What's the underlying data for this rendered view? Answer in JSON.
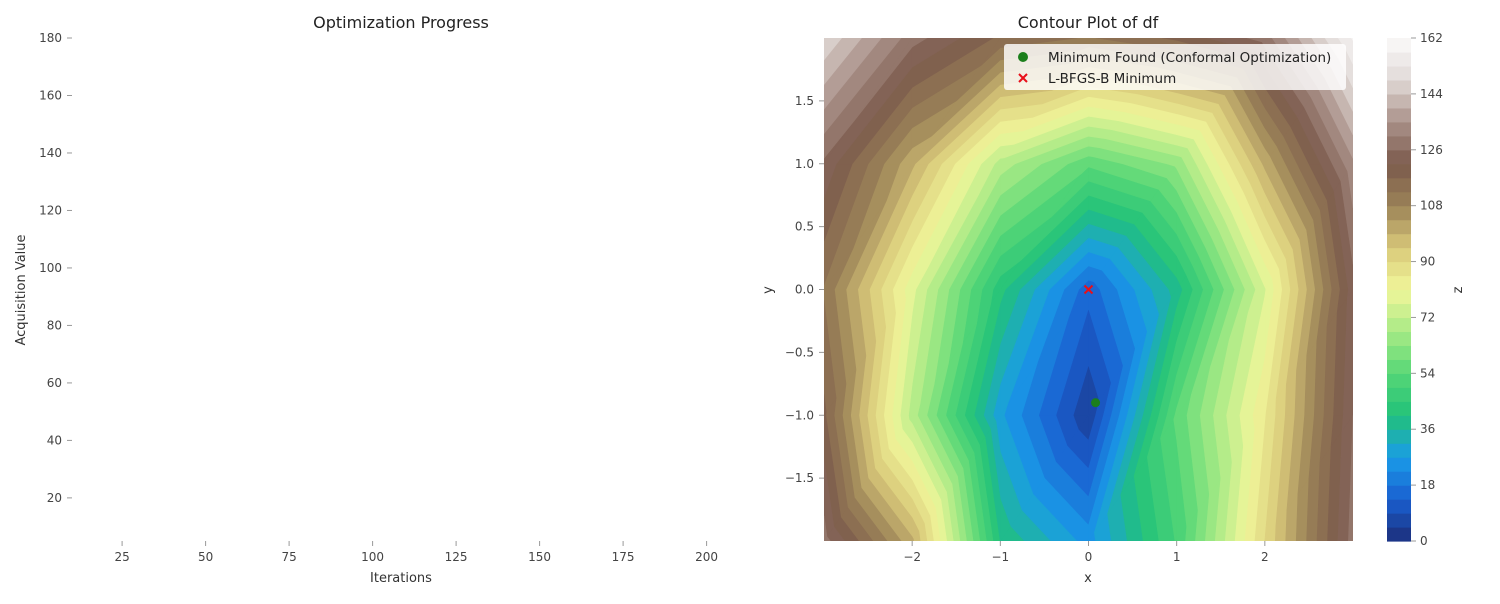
{
  "chart_data": [
    {
      "type": "line",
      "title": "Optimization Progress",
      "xlabel": "Iterations",
      "ylabel": "Acquisition Value",
      "xlim": [
        10,
        210
      ],
      "ylim": [
        5,
        180
      ],
      "xticks": [
        25,
        50,
        75,
        100,
        125,
        150,
        175,
        200
      ],
      "yticks": [
        20,
        40,
        60,
        80,
        100,
        120,
        140,
        160,
        180
      ],
      "grid": false,
      "series": []
    },
    {
      "type": "contour",
      "title": "Contour Plot of df",
      "xlabel": "x",
      "ylabel": "y",
      "colorbar_label": "z",
      "xlim": [
        -3,
        3
      ],
      "ylim": [
        -2,
        2
      ],
      "xticks": [
        -2,
        -1,
        0,
        1,
        2
      ],
      "xtick_labels": [
        "−2",
        "−1",
        "0",
        "1",
        "2"
      ],
      "yticks": [
        -1.5,
        -1.0,
        -0.5,
        0.0,
        0.5,
        1.0,
        1.5
      ],
      "ytick_labels": [
        "−1.5",
        "−1.0",
        "−0.5",
        "0.0",
        "0.5",
        "1.0",
        "1.5"
      ],
      "z_range": [
        0,
        162
      ],
      "colorbar_ticks": [
        0,
        18,
        36,
        54,
        72,
        90,
        108,
        126,
        144,
        162
      ],
      "grid_x": [
        -3,
        -2,
        -1,
        0,
        1,
        2,
        3
      ],
      "grid_y": [
        -2,
        -1,
        0,
        1,
        2
      ],
      "z": [
        [
          128,
          100,
          40,
          25,
          50,
          90,
          128
        ],
        [
          118,
          70,
          28,
          5,
          55,
          85,
          126
        ],
        [
          112,
          78,
          42,
          15,
          38,
          76,
          124
        ],
        [
          125,
          100,
          70,
          55,
          64,
          100,
          134
        ],
        [
          148,
          128,
          116,
          112,
          118,
          128,
          158
        ]
      ],
      "colormap": [
        "#1c2e7a",
        "#1a5fd0",
        "#1a9ce8",
        "#21c17a",
        "#56d776",
        "#a8ea86",
        "#f1f69a",
        "#d9c979",
        "#9c8358",
        "#7b5a4c",
        "#aa9189",
        "#e1dad7",
        "#fbfafa"
      ],
      "markers": [
        {
          "label": "Minimum Found (Conformal Optimization)",
          "x": 0.08,
          "y": -0.9,
          "marker": "o",
          "color": "#1b7f1b"
        },
        {
          "label": "L-BFGS-B Minimum",
          "x": 0.0,
          "y": 0.0,
          "marker": "x",
          "color": "#e8101a"
        }
      ],
      "legend_loc": "upper right"
    }
  ]
}
